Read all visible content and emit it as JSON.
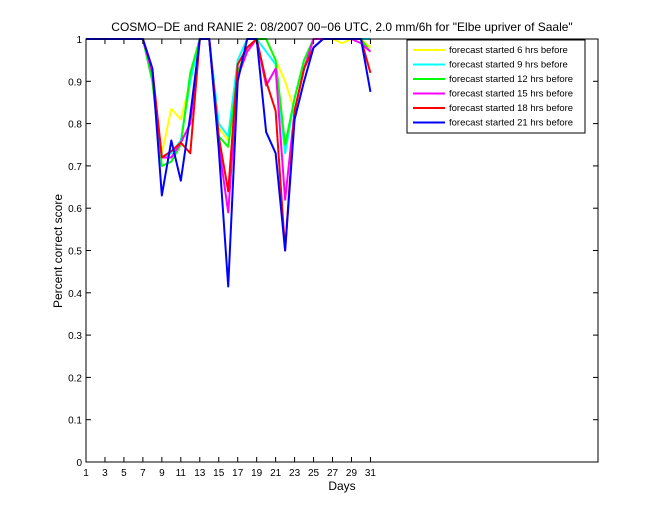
{
  "chart_data": {
    "type": "line",
    "title": "COSMO−DE and RANIE 2: 08/2007 00−06 UTC, 2.0 mm/6h for \"Elbe upriver of Saale\"",
    "xlabel": "Days",
    "ylabel": "Percent correct score",
    "xlim": [
      1,
      55
    ],
    "ylim": [
      0,
      1
    ],
    "xticks": [
      1,
      3,
      5,
      7,
      9,
      11,
      13,
      15,
      17,
      19,
      21,
      23,
      25,
      27,
      29,
      31
    ],
    "yticks": [
      0,
      0.1,
      0.2,
      0.3,
      0.4,
      0.5,
      0.6,
      0.7,
      0.8,
      0.9,
      1
    ],
    "ytick_labels": [
      "0",
      "0.1",
      "0.2",
      "0.3",
      "0.4",
      "0.5",
      "0.6",
      "0.7",
      "0.8",
      "0.9",
      "1"
    ],
    "grid": false,
    "legend_position": "top-right",
    "x": [
      1,
      2,
      3,
      4,
      5,
      6,
      7,
      8,
      9,
      10,
      11,
      12,
      13,
      14,
      15,
      16,
      17,
      18,
      19,
      20,
      21,
      22,
      23,
      24,
      25,
      26,
      27,
      28,
      29,
      30,
      31
    ],
    "series": [
      {
        "name": "forecast started 6 hrs before",
        "color": "#ffff00",
        "values": [
          1,
          1,
          1,
          1,
          1,
          1,
          1,
          0.9,
          0.73,
          0.835,
          0.81,
          0.9,
          1,
          1,
          0.79,
          0.76,
          0.95,
          1,
          1,
          1,
          0.95,
          0.9,
          0.83,
          0.93,
          1,
          1,
          1,
          0.99,
          1,
          1,
          0.98
        ]
      },
      {
        "name": "forecast started 9 hrs before",
        "color": "#00ffff",
        "values": [
          1,
          1,
          1,
          1,
          1,
          1,
          1,
          0.9,
          0.72,
          0.73,
          0.76,
          0.9,
          1,
          1,
          0.8,
          0.77,
          0.95,
          1,
          1,
          0.97,
          0.94,
          0.73,
          0.86,
          0.95,
          1,
          1,
          1,
          1,
          1,
          1,
          1
        ]
      },
      {
        "name": "forecast started 12 hrs before",
        "color": "#00ff00",
        "values": [
          1,
          1,
          1,
          1,
          1,
          1,
          1,
          0.9,
          0.7,
          0.71,
          0.75,
          0.92,
          1,
          1,
          0.77,
          0.745,
          0.92,
          0.98,
          1,
          1,
          0.95,
          0.75,
          0.86,
          0.95,
          1,
          1,
          1,
          1,
          1,
          1,
          0.97
        ]
      },
      {
        "name": "forecast started 15 hrs before",
        "color": "#ff00ff",
        "values": [
          1,
          1,
          1,
          1,
          1,
          1,
          1,
          0.92,
          0.72,
          0.72,
          0.755,
          0.8,
          1,
          1,
          0.75,
          0.59,
          0.91,
          0.97,
          1,
          0.89,
          0.93,
          0.62,
          0.83,
          0.93,
          1,
          1,
          1,
          1,
          1,
          0.99,
          0.97
        ]
      },
      {
        "name": "forecast started 18 hrs before",
        "color": "#ff0000",
        "values": [
          1,
          1,
          1,
          1,
          1,
          1,
          1,
          0.93,
          0.72,
          0.735,
          0.755,
          0.73,
          1,
          1,
          0.77,
          0.64,
          0.94,
          0.98,
          1,
          0.9,
          0.83,
          0.5,
          0.83,
          0.93,
          0.98,
          1,
          1,
          1,
          1,
          1,
          0.92
        ]
      },
      {
        "name": "forecast started 21 hrs before",
        "color": "#0000ff",
        "values": [
          1,
          1,
          1,
          1,
          1,
          1,
          1,
          0.93,
          0.63,
          0.76,
          0.665,
          0.82,
          1,
          1,
          0.74,
          0.415,
          0.9,
          1,
          1,
          0.78,
          0.73,
          0.5,
          0.81,
          0.9,
          0.98,
          1,
          1,
          1,
          1,
          1,
          0.875
        ]
      }
    ]
  }
}
